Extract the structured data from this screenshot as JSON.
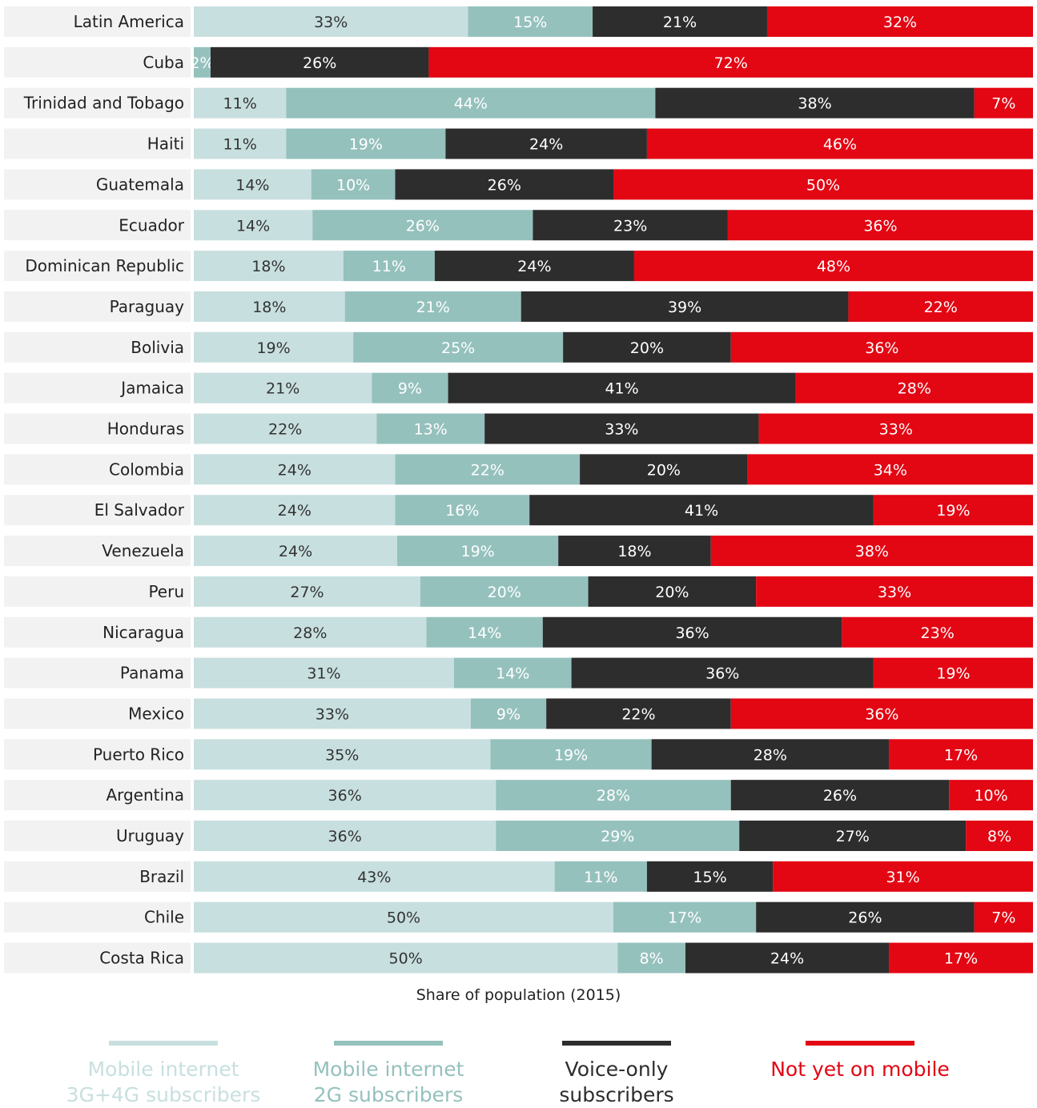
{
  "chart_data": {
    "type": "bar",
    "orientation": "horizontal",
    "stacked": true,
    "xlabel": "Share of population (2015)",
    "categories": [
      "Latin America",
      "Cuba",
      "Trinidad and Tobago",
      "Haiti",
      "Guatemala",
      "Ecuador",
      "Dominican Republic",
      "Paraguay",
      "Bolivia",
      "Jamaica",
      "Honduras",
      "Colombia",
      "El Salvador",
      "Venezuela",
      "Peru",
      "Nicaragua",
      "Panama",
      "Mexico",
      "Puerto Rico",
      "Argentina",
      "Uruguay",
      "Brazil",
      "Chile",
      "Costa Rica"
    ],
    "series": [
      {
        "name": "Mobile internet 3G+4G subscribers",
        "color": "#c8dfdf",
        "values": [
          33,
          0,
          11,
          11,
          14,
          14,
          18,
          18,
          19,
          21,
          22,
          24,
          24,
          24,
          27,
          28,
          31,
          33,
          35,
          36,
          36,
          43,
          50,
          50
        ]
      },
      {
        "name": "Mobile internet 2G subscribers",
        "color": "#95c1bd",
        "values": [
          15,
          2,
          44,
          19,
          10,
          26,
          11,
          21,
          25,
          9,
          13,
          22,
          16,
          19,
          20,
          14,
          14,
          9,
          19,
          28,
          29,
          11,
          17,
          8
        ]
      },
      {
        "name": "Voice-only subscribers",
        "color": "#2d2d2d",
        "values": [
          21,
          26,
          38,
          24,
          26,
          23,
          24,
          39,
          20,
          41,
          33,
          20,
          41,
          18,
          20,
          36,
          36,
          22,
          28,
          26,
          27,
          15,
          26,
          24
        ]
      },
      {
        "name": "Not yet on mobile",
        "color": "#e30613",
        "values": [
          32,
          72,
          7,
          46,
          50,
          36,
          48,
          22,
          36,
          28,
          33,
          34,
          19,
          38,
          33,
          23,
          19,
          36,
          17,
          10,
          8,
          31,
          7,
          17
        ]
      }
    ],
    "data_label_colors": [
      "#333333",
      "#ffffff",
      "#ffffff",
      "#ffffff"
    ],
    "legend_text_colors": [
      "#c8dfdf",
      "#95c1bd",
      "#2d2d2d",
      "#e30613"
    ]
  },
  "legend": {
    "items": [
      {
        "line1": "Mobile internet",
        "line2": "3G+4G subscribers"
      },
      {
        "line1": "Mobile internet",
        "line2": "2G subscribers"
      },
      {
        "line1": "Voice-only",
        "line2": "subscribers"
      },
      {
        "line1": "Not yet on mobile",
        "line2": ""
      }
    ]
  }
}
